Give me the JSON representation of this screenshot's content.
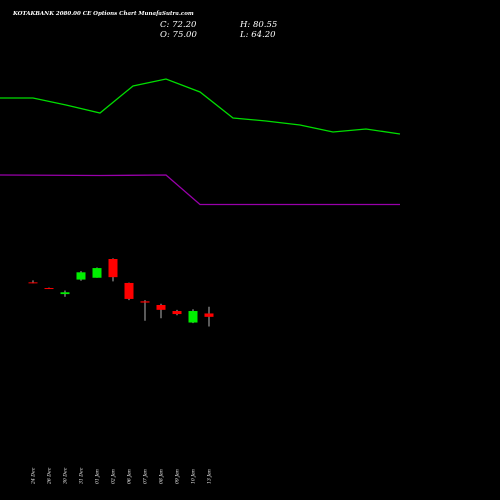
{
  "chart_data": {
    "type": "candlestick",
    "title": "KOTAKBANK 2080.00  CE Options  Chart MunafaSutra.com",
    "ohlc_labels": {
      "close": "C: 72.20",
      "high": "H: 80.55",
      "open": "O: 75.00",
      "low": "L: 64.20"
    },
    "price_range": [
      20,
      120
    ],
    "categories": [
      "24 Dec",
      "26 Dec",
      "30 Dec",
      "31 Dec",
      "01 Jan",
      "02 Jan",
      "06 Jan",
      "07 Jan",
      "08 Jan",
      "09 Jan",
      "10 Jan",
      "13 Jan"
    ],
    "candles": [
      {
        "open": 100.7,
        "high": 102.3,
        "low": 100.0,
        "close": 100.2
      },
      {
        "open": 96.0,
        "high": 96.3,
        "low": 95.6,
        "close": 95.8
      },
      {
        "open": 91.0,
        "high": 94.0,
        "low": 88.8,
        "close": 92.5
      },
      {
        "open": 103.0,
        "high": 110.0,
        "low": 102.0,
        "close": 109.0
      },
      {
        "open": 104.5,
        "high": 113.0,
        "low": 104.5,
        "close": 112.5
      },
      {
        "open": 120.0,
        "high": 120.5,
        "low": 101.5,
        "close": 105.0
      },
      {
        "open": 100.2,
        "high": 100.5,
        "low": 86.0,
        "close": 87.0
      },
      {
        "open": 85.0,
        "high": 86.0,
        "low": 69.0,
        "close": 84.0
      },
      {
        "open": 82.0,
        "high": 83.0,
        "low": 71.0,
        "close": 78.0
      },
      {
        "open": 77.0,
        "high": 78.0,
        "low": 73.5,
        "close": 74.5
      },
      {
        "open": 67.5,
        "high": 78.5,
        "low": 67.0,
        "close": 77.0
      },
      {
        "open": 75.0,
        "high": 80.55,
        "low": 64.2,
        "close": 72.2
      }
    ],
    "lines": [
      {
        "color": "#00dd00",
        "points": [
          [
            0,
            98
          ],
          [
            33,
            98
          ],
          [
            66,
            105
          ],
          [
            100,
            113
          ],
          [
            133,
            86
          ],
          [
            166,
            79
          ],
          [
            200,
            92
          ],
          [
            233,
            118
          ],
          [
            266,
            121
          ],
          [
            300,
            125
          ],
          [
            333,
            132
          ],
          [
            366,
            129
          ],
          [
            400,
            134
          ]
        ]
      },
      {
        "color": "#9900aa",
        "points": [
          [
            0,
            175
          ],
          [
            100,
            175.5
          ],
          [
            166,
            175
          ],
          [
            200,
            204.5
          ],
          [
            400,
            204.5
          ]
        ]
      }
    ],
    "colors": {
      "background": "#000000",
      "up": "#00ee00",
      "down": "#ff0000",
      "wick": "#ffffff",
      "text": "#ffffff"
    }
  }
}
